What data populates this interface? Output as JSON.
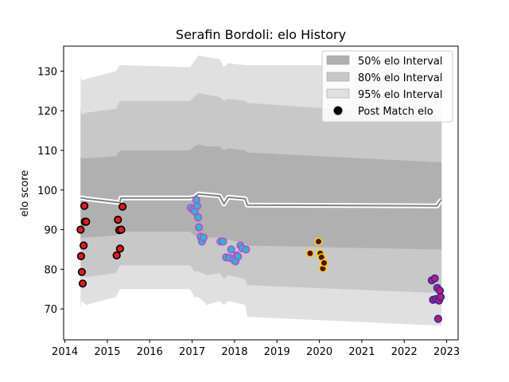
{
  "chart_data": {
    "type": "line",
    "title": "Serafin Bordoli: elo History",
    "xlabel": "",
    "ylabel": "elo score",
    "xlim": [
      2013.97,
      2023.27
    ],
    "ylim": [
      62.2,
      136.3
    ],
    "x_ticks": [
      "2014",
      "2015",
      "2016",
      "2017",
      "2018",
      "2019",
      "2020",
      "2021",
      "2022",
      "2023"
    ],
    "y_ticks": [
      "70",
      "80",
      "90",
      "100",
      "110",
      "120",
      "130"
    ],
    "grid": false,
    "legend_placement": "top-right",
    "legend": [
      {
        "label": "50% elo Interval",
        "color": "#b0b0b0"
      },
      {
        "label": "80% elo Interval",
        "color": "#c8c8c8"
      },
      {
        "label": "95% elo Interval",
        "color": "#e0e0e0"
      },
      {
        "label": "Post Match elo",
        "color": "#000000"
      }
    ],
    "bands": {
      "x": [
        2014.37,
        2014.4,
        2014.5,
        2015.2,
        2015.3,
        2016.95,
        2017.05,
        2017.15,
        2017.35,
        2017.65,
        2017.75,
        2017.85,
        2018.25,
        2018.3,
        2022.8,
        2022.82,
        2022.88
      ],
      "b95_hi": [
        129.0,
        127.5,
        128.0,
        130.0,
        131.5,
        131.0,
        132.5,
        134.0,
        133.5,
        133.0,
        131.0,
        132.0,
        131.5,
        131.5,
        131.5,
        131.5,
        131.5
      ],
      "b95_lo": [
        70.0,
        72.0,
        71.0,
        73.0,
        75.0,
        75.0,
        73.0,
        73.0,
        71.0,
        72.0,
        71.0,
        72.0,
        71.0,
        68.0,
        65.8,
        65.8,
        65.8
      ],
      "b80_hi": [
        120.5,
        119.0,
        119.5,
        120.5,
        122.5,
        122.5,
        123.5,
        124.5,
        124.0,
        123.5,
        122.5,
        123.0,
        122.5,
        122.0,
        118.5,
        118.5,
        118.5
      ],
      "b80_lo": [
        77.0,
        78.5,
        78.0,
        79.0,
        81.0,
        81.0,
        79.5,
        79.5,
        78.5,
        79.0,
        77.5,
        78.5,
        77.5,
        76.0,
        74.0,
        74.0,
        74.0
      ],
      "b50_hi": [
        108.5,
        108.0,
        108.0,
        108.5,
        110.0,
        110.0,
        111.0,
        111.5,
        111.0,
        111.0,
        110.0,
        110.5,
        110.0,
        109.5,
        107.0,
        107.0,
        107.0
      ],
      "b50_lo": [
        87.5,
        88.0,
        88.0,
        88.5,
        89.5,
        89.5,
        88.5,
        88.5,
        88.0,
        88.0,
        87.0,
        87.5,
        86.5,
        86.0,
        85.0,
        85.0,
        85.0
      ]
    },
    "mean_line": {
      "x": [
        2014.37,
        2014.4,
        2014.5,
        2015.3,
        2015.32,
        2016.95,
        2017.05,
        2017.15,
        2017.35,
        2017.65,
        2017.7,
        2017.75,
        2017.85,
        2018.25,
        2018.3,
        2022.78,
        2022.82,
        2022.88
      ],
      "y": [
        98.0,
        98.0,
        97.8,
        96.8,
        98.0,
        98.0,
        98.2,
        99.0,
        98.8,
        98.5,
        97.5,
        96.5,
        98.2,
        97.8,
        96.2,
        96.0,
        96.8,
        97.5
      ]
    },
    "series": [
      {
        "style": "red-fill-black-edge",
        "x": [
          2014.37,
          2014.38,
          2014.4,
          2014.42,
          2014.44,
          2014.46,
          2014.47,
          2014.5,
          2015.22,
          2015.25,
          2015.28,
          2015.3,
          2015.33,
          2015.36
        ],
        "y": [
          90.0,
          83.3,
          79.3,
          76.4,
          86.0,
          96.0,
          92.0,
          92.0,
          83.5,
          92.5,
          89.9,
          85.2,
          90.0,
          95.8
        ]
      },
      {
        "style": "cyan-fill-purple-edge",
        "x": [
          2016.97,
          2017.02,
          2017.06,
          2017.1,
          2017.12,
          2017.14,
          2017.16,
          2017.2,
          2017.23,
          2017.27,
          2017.67,
          2017.73,
          2017.8,
          2017.87,
          2017.92,
          2017.97,
          2018.02,
          2018.05,
          2018.08,
          2018.14,
          2018.18,
          2018.27
        ],
        "y": [
          95.5,
          95.0,
          94.6,
          97.5,
          96.0,
          93.1,
          90.6,
          88.2,
          87.0,
          88.0,
          87.0,
          87.0,
          83.0,
          82.9,
          85.0,
          82.5,
          82.0,
          83.5,
          83.2,
          86.0,
          85.3,
          85.0
        ]
      },
      {
        "style": "yellow-edge-dark-fill",
        "x": [
          2019.78,
          2019.98,
          2020.02,
          2020.05,
          2020.08,
          2020.11
        ],
        "y": [
          84.0,
          87.0,
          84.0,
          83.0,
          80.2,
          81.6
        ]
      },
      {
        "style": "purple-fill-blue-edge",
        "x": [
          2022.65,
          2022.68,
          2022.72,
          2022.75,
          2022.78,
          2022.8,
          2022.82,
          2022.84,
          2022.86
        ],
        "y": [
          77.2,
          72.3,
          77.7,
          72.5,
          75.3,
          67.5,
          72.1,
          74.6,
          73.0
        ]
      }
    ]
  }
}
